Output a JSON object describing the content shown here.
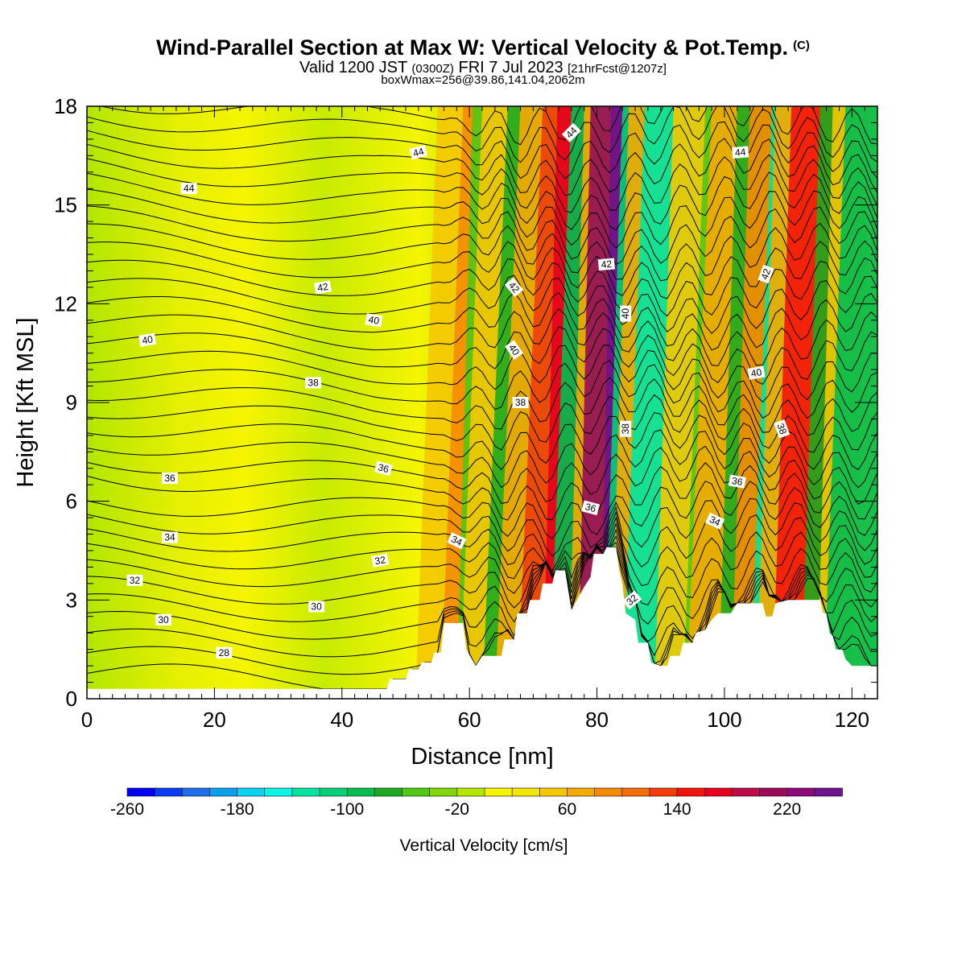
{
  "header": {
    "title": "Wind-Parallel Section at Max W: Vertical Velocity & Pot.Temp.",
    "title_mark": "(C)",
    "valid_time": "Valid 1200 JST",
    "utc_time": "(0300Z)",
    "date": "FRI 7 Jul 2023",
    "forecast": "[21hrFcst@1207z]",
    "box_info": "boxWmax=256@39.86,141.04,2062m"
  },
  "chart_data": {
    "type": "heatmap",
    "xlabel": "Distance [nm]",
    "ylabel": "Height [Kft MSL]",
    "xlim": [
      0,
      124
    ],
    "ylim": [
      0,
      18
    ],
    "x_ticks": [
      0,
      20,
      40,
      60,
      80,
      100,
      120
    ],
    "y_ticks": [
      0,
      3,
      6,
      9,
      12,
      15,
      18
    ],
    "colorbar": {
      "title": "Vertical Velocity [cm/s]",
      "min": -260,
      "max": 260,
      "step": 20,
      "tick_labels": [
        "-260",
        "-180",
        "-100",
        "-20",
        "60",
        "140",
        "220"
      ],
      "colors": [
        "#0000f5",
        "#0a3cf5",
        "#1e6ef0",
        "#0aa0f0",
        "#0ad2f0",
        "#0af5e6",
        "#00e6a0",
        "#00d278",
        "#00be50",
        "#1eaa1e",
        "#50c814",
        "#82d70a",
        "#b4e600",
        "#f5f500",
        "#f5e600",
        "#f5c800",
        "#f5aa00",
        "#f58c00",
        "#f56e0a",
        "#f53c0a",
        "#f5140a",
        "#e6001e",
        "#be0a46",
        "#a00a5a",
        "#8c0a78",
        "#6e148c"
      ]
    },
    "terrain_kft": [
      [
        0,
        0.3
      ],
      [
        47,
        0.3
      ],
      [
        47.5,
        0.6
      ],
      [
        50,
        0.6
      ],
      [
        50.5,
        0.9
      ],
      [
        52,
        0.9
      ],
      [
        52.5,
        1.1
      ],
      [
        54,
        1.1
      ],
      [
        54.5,
        1.4
      ],
      [
        55.5,
        1.4
      ],
      [
        56,
        2.3
      ],
      [
        59,
        2.3
      ],
      [
        59.5,
        1.5
      ],
      [
        61,
        1
      ],
      [
        62,
        1.3
      ],
      [
        65,
        1.3
      ],
      [
        65.5,
        1.8
      ],
      [
        67,
        1.8
      ],
      [
        67.5,
        2.6
      ],
      [
        69,
        2.6
      ],
      [
        69.5,
        3.0
      ],
      [
        71,
        3.0
      ],
      [
        71.5,
        3.5
      ],
      [
        73,
        3.5
      ],
      [
        73.5,
        3.9
      ],
      [
        75,
        3.9
      ],
      [
        75.5,
        3.3
      ],
      [
        76,
        2.7
      ],
      [
        78,
        3.4
      ],
      [
        79,
        3.7
      ],
      [
        79.5,
        4.4
      ],
      [
        81,
        4.4
      ],
      [
        81.5,
        4.6
      ],
      [
        83,
        4.6
      ],
      [
        83.5,
        3.9
      ],
      [
        84,
        3.5
      ],
      [
        84.5,
        2.6
      ],
      [
        86,
        2.4
      ],
      [
        86.5,
        1.7
      ],
      [
        88,
        1.7
      ],
      [
        88.5,
        1.1
      ],
      [
        90,
        1.0
      ],
      [
        91,
        1.0
      ],
      [
        91.5,
        1.3
      ],
      [
        93,
        1.3
      ],
      [
        93.5,
        1.7
      ],
      [
        95,
        1.7
      ],
      [
        95.5,
        2.0
      ],
      [
        97,
        2.1
      ],
      [
        98,
        2.4
      ],
      [
        99,
        2.6
      ],
      [
        101,
        2.6
      ],
      [
        102,
        2.9
      ],
      [
        106,
        2.9
      ],
      [
        106.5,
        2.5
      ],
      [
        107.5,
        2.5
      ],
      [
        108,
        2.9
      ],
      [
        110,
        3.0
      ],
      [
        115,
        3.0
      ],
      [
        115.5,
        2.6
      ],
      [
        116,
        2.6
      ],
      [
        116.5,
        2.0
      ],
      [
        117,
        1.9
      ],
      [
        117.5,
        1.5
      ],
      [
        118.5,
        1.5
      ],
      [
        119,
        1.2
      ],
      [
        120,
        1.0
      ],
      [
        124,
        1.0
      ]
    ],
    "theta_contours": [
      {
        "label": "28",
        "x": 21.5,
        "y": 1.4,
        "rot": 0
      },
      {
        "label": "30",
        "x": 12,
        "y": 2.4,
        "rot": 0
      },
      {
        "label": "30",
        "x": 36,
        "y": 2.8,
        "rot": 0
      },
      {
        "label": "32",
        "x": 7.5,
        "y": 3.6,
        "rot": 0
      },
      {
        "label": "32",
        "x": 46,
        "y": 4.2,
        "rot": -10
      },
      {
        "label": "32",
        "x": 85.5,
        "y": 3.0,
        "rot": -40
      },
      {
        "label": "34",
        "x": 13,
        "y": 4.9,
        "rot": 0
      },
      {
        "label": "34",
        "x": 58,
        "y": 4.8,
        "rot": 25
      },
      {
        "label": "34",
        "x": 98.5,
        "y": 5.4,
        "rot": 25
      },
      {
        "label": "36",
        "x": 13,
        "y": 6.7,
        "rot": 0
      },
      {
        "label": "36",
        "x": 46.5,
        "y": 7.0,
        "rot": 15
      },
      {
        "label": "36",
        "x": 79,
        "y": 5.8,
        "rot": 15
      },
      {
        "label": "36",
        "x": 102,
        "y": 6.6,
        "rot": 10
      },
      {
        "label": "38",
        "x": 35.5,
        "y": 9.6,
        "rot": 0
      },
      {
        "label": "38",
        "x": 68,
        "y": 9.0,
        "rot": 0
      },
      {
        "label": "38",
        "x": 84.5,
        "y": 8.2,
        "rot": -90
      },
      {
        "label": "38",
        "x": 109,
        "y": 8.2,
        "rot": 70
      },
      {
        "label": "40",
        "x": 9.5,
        "y": 10.9,
        "rot": -10
      },
      {
        "label": "40",
        "x": 45,
        "y": 11.5,
        "rot": 10
      },
      {
        "label": "40",
        "x": 67,
        "y": 10.6,
        "rot": 55
      },
      {
        "label": "40",
        "x": 84.5,
        "y": 11.7,
        "rot": -90
      },
      {
        "label": "40",
        "x": 105,
        "y": 9.9,
        "rot": -10
      },
      {
        "label": "42",
        "x": 37,
        "y": 12.5,
        "rot": -10
      },
      {
        "label": "42",
        "x": 67,
        "y": 12.5,
        "rot": 50
      },
      {
        "label": "42",
        "x": 81.5,
        "y": 13.2,
        "rot": -5
      },
      {
        "label": "42",
        "x": 106.5,
        "y": 12.9,
        "rot": -70
      },
      {
        "label": "44",
        "x": 16,
        "y": 15.5,
        "rot": 0
      },
      {
        "label": "44",
        "x": 52,
        "y": 16.6,
        "rot": -15
      },
      {
        "label": "44",
        "x": 76,
        "y": 17.2,
        "rot": -45
      },
      {
        "label": "44",
        "x": 102.5,
        "y": 16.6,
        "rot": -5
      }
    ]
  }
}
